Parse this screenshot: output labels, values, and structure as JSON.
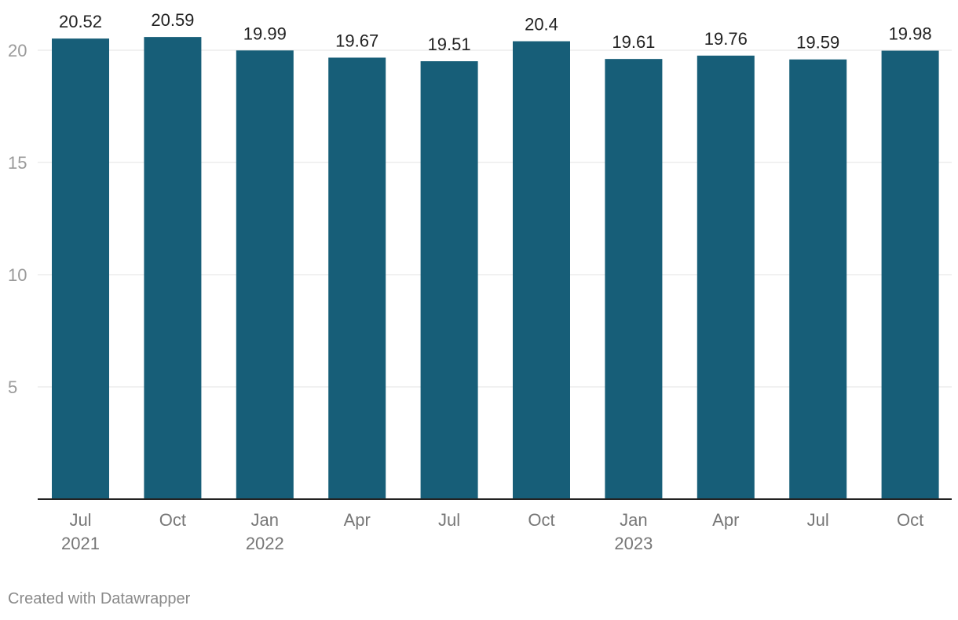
{
  "chart_data": {
    "type": "bar",
    "categories": [
      "Jul 2021",
      "Oct 2021",
      "Jan 2022",
      "Apr 2022",
      "Jul 2022",
      "Oct 2022",
      "Jan 2023",
      "Apr 2023",
      "Jul 2023",
      "Oct 2023"
    ],
    "tick_labels": [
      [
        "Jul",
        "2021"
      ],
      [
        "Oct",
        ""
      ],
      [
        "Jan",
        "2022"
      ],
      [
        "Apr",
        ""
      ],
      [
        "Jul",
        ""
      ],
      [
        "Oct",
        ""
      ],
      [
        "Jan",
        "2023"
      ],
      [
        "Apr",
        ""
      ],
      [
        "Jul",
        ""
      ],
      [
        "Oct",
        ""
      ]
    ],
    "values": [
      20.52,
      20.59,
      19.99,
      19.67,
      19.51,
      20.4,
      19.61,
      19.76,
      19.59,
      19.98
    ],
    "title": "",
    "xlabel": "",
    "ylabel": "",
    "ylim": [
      0,
      20
    ],
    "yticks": [
      5,
      10,
      15,
      20
    ],
    "grid": true,
    "bar_color": "#175e78"
  },
  "footer": {
    "credit": "Created with Datawrapper"
  }
}
